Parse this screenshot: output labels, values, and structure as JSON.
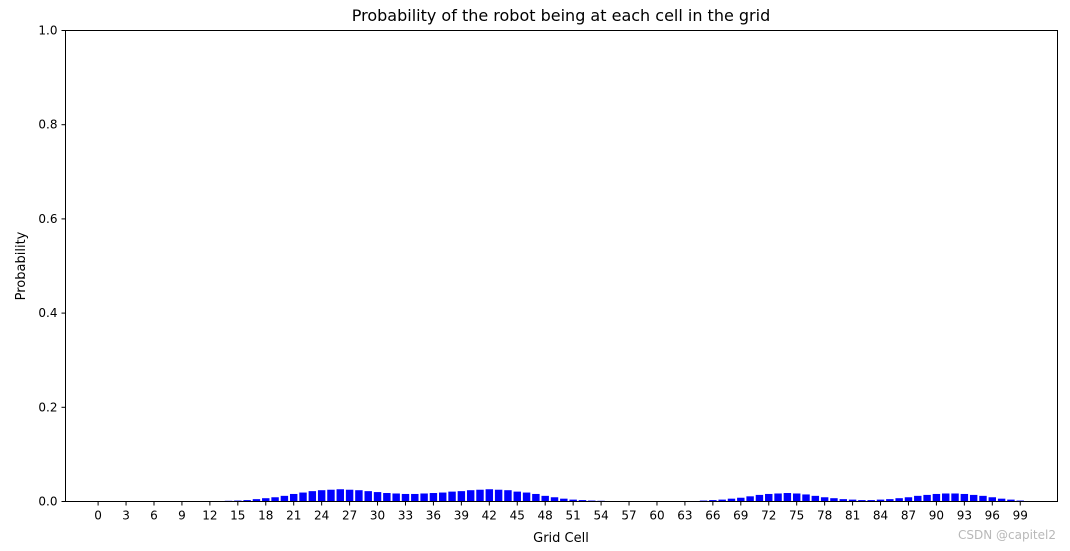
{
  "chart_data": {
    "type": "bar",
    "title": "Probability of the robot being at each cell in the grid",
    "xlabel": "Grid Cell",
    "ylabel": "Probability",
    "ylim": [
      0,
      1.0
    ],
    "xlim": [
      -3.5,
      103
    ],
    "grid": false,
    "legend": "none",
    "bar_color": "#0000ff",
    "yticks": [
      "0.0",
      "0.2",
      "0.4",
      "0.6",
      "0.8",
      "1.0"
    ],
    "xticks": [
      "0",
      "3",
      "6",
      "9",
      "12",
      "15",
      "18",
      "21",
      "24",
      "27",
      "30",
      "33",
      "36",
      "39",
      "42",
      "45",
      "48",
      "51",
      "54",
      "57",
      "60",
      "63",
      "66",
      "69",
      "72",
      "75",
      "78",
      "81",
      "84",
      "87",
      "90",
      "93",
      "96",
      "99"
    ],
    "x": [
      0,
      1,
      2,
      3,
      4,
      5,
      6,
      7,
      8,
      9,
      10,
      11,
      12,
      13,
      14,
      15,
      16,
      17,
      18,
      19,
      20,
      21,
      22,
      23,
      24,
      25,
      26,
      27,
      28,
      29,
      30,
      31,
      32,
      33,
      34,
      35,
      36,
      37,
      38,
      39,
      40,
      41,
      42,
      43,
      44,
      45,
      46,
      47,
      48,
      49,
      50,
      51,
      52,
      53,
      54,
      55,
      56,
      57,
      58,
      59,
      60,
      61,
      62,
      63,
      64,
      65,
      66,
      67,
      68,
      69,
      70,
      71,
      72,
      73,
      74,
      75,
      76,
      77,
      78,
      79,
      80,
      81,
      82,
      83,
      84,
      85,
      86,
      87,
      88,
      89,
      90,
      91,
      92,
      93,
      94,
      95,
      96,
      97,
      98,
      99
    ],
    "values": [
      0,
      0,
      0,
      0,
      0,
      0,
      0,
      0,
      0,
      0,
      0,
      0,
      0.0005,
      0.001,
      0.0015,
      0.002,
      0.003,
      0.005,
      0.007,
      0.009,
      0.012,
      0.016,
      0.019,
      0.022,
      0.024,
      0.025,
      0.026,
      0.025,
      0.024,
      0.022,
      0.02,
      0.018,
      0.017,
      0.016,
      0.016,
      0.017,
      0.018,
      0.019,
      0.021,
      0.022,
      0.024,
      0.025,
      0.026,
      0.025,
      0.024,
      0.021,
      0.019,
      0.016,
      0.012,
      0.009,
      0.006,
      0.004,
      0.003,
      0.002,
      0.0015,
      0.001,
      0.0005,
      0,
      0,
      0,
      0,
      0,
      0,
      0.0005,
      0.001,
      0.002,
      0.003,
      0.004,
      0.006,
      0.008,
      0.011,
      0.014,
      0.016,
      0.017,
      0.018,
      0.017,
      0.015,
      0.012,
      0.009,
      0.007,
      0.005,
      0.004,
      0.003,
      0.003,
      0.004,
      0.005,
      0.007,
      0.009,
      0.012,
      0.014,
      0.016,
      0.017,
      0.017,
      0.016,
      0.014,
      0.012,
      0.009,
      0.006,
      0.004,
      0.002
    ]
  },
  "watermark": "CSDN @capitel2"
}
